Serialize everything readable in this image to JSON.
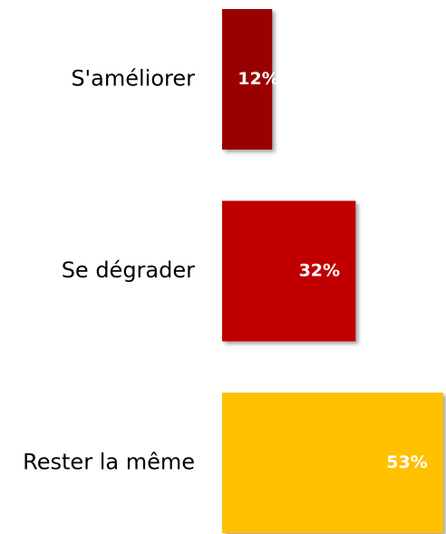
{
  "chart_data": {
    "type": "bar",
    "orientation": "horizontal",
    "categories": [
      "S'améliorer",
      "Se dégrader",
      "Rester la même"
    ],
    "values": [
      12,
      32,
      53
    ],
    "value_labels": [
      "12%",
      "32%",
      "53%"
    ],
    "colors": [
      "#990000",
      "#c00000",
      "#ffc000"
    ]
  }
}
